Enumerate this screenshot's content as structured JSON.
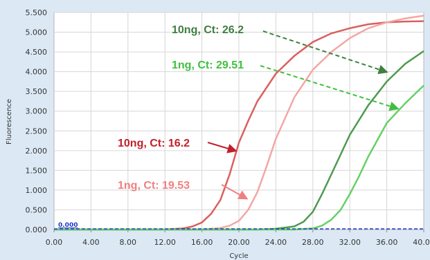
{
  "chart_data": {
    "type": "line",
    "xlabel": "Cycle",
    "ylabel": "Fluorescence",
    "xlim": [
      0,
      40
    ],
    "ylim": [
      0,
      5.5
    ],
    "x_ticks": [
      "0.00",
      "4.00",
      "8.00",
      "12.00",
      "16.00",
      "20.00",
      "24.00",
      "28.00",
      "32.00",
      "36.00",
      "40.00"
    ],
    "y_ticks": [
      "0.000",
      "0.500",
      "1.000",
      "1.500",
      "2.000",
      "2.500",
      "3.000",
      "3.500",
      "4.000",
      "4.500",
      "5.000",
      "5.500"
    ],
    "grid": true,
    "threshold": {
      "label": "0.000",
      "value": 0.0,
      "color": "#1f36c8"
    },
    "series": [
      {
        "color": "#d9605f",
        "points": [
          [
            0,
            0
          ],
          [
            12,
            0
          ],
          [
            14,
            0.03
          ],
          [
            15,
            0.08
          ],
          [
            16,
            0.18
          ],
          [
            17,
            0.4
          ],
          [
            18,
            0.75
          ],
          [
            19,
            1.4
          ],
          [
            20,
            2.2
          ],
          [
            21,
            2.75
          ],
          [
            22,
            3.25
          ],
          [
            24,
            3.95
          ],
          [
            26,
            4.4
          ],
          [
            28,
            4.75
          ],
          [
            30,
            4.97
          ],
          [
            32,
            5.1
          ],
          [
            34,
            5.2
          ],
          [
            36,
            5.25
          ],
          [
            38,
            5.27
          ],
          [
            40,
            5.28
          ]
        ]
      },
      {
        "color": "#f4a6a6",
        "points": [
          [
            0,
            0
          ],
          [
            16,
            0
          ],
          [
            18,
            0.04
          ],
          [
            19,
            0.1
          ],
          [
            20,
            0.22
          ],
          [
            21,
            0.5
          ],
          [
            22,
            0.95
          ],
          [
            23,
            1.6
          ],
          [
            24,
            2.3
          ],
          [
            26,
            3.35
          ],
          [
            28,
            4.05
          ],
          [
            30,
            4.5
          ],
          [
            32,
            4.85
          ],
          [
            34,
            5.1
          ],
          [
            36,
            5.25
          ],
          [
            38,
            5.35
          ],
          [
            40,
            5.42
          ]
        ]
      },
      {
        "color": "#4e9a50",
        "points": [
          [
            0,
            0
          ],
          [
            22,
            0
          ],
          [
            24,
            0.02
          ],
          [
            26,
            0.08
          ],
          [
            27,
            0.2
          ],
          [
            28,
            0.45
          ],
          [
            29,
            0.9
          ],
          [
            30,
            1.4
          ],
          [
            32,
            2.4
          ],
          [
            34,
            3.15
          ],
          [
            36,
            3.75
          ],
          [
            38,
            4.2
          ],
          [
            40,
            4.52
          ]
        ]
      },
      {
        "color": "#66d066",
        "points": [
          [
            0,
            0
          ],
          [
            26,
            0
          ],
          [
            28,
            0.03
          ],
          [
            29,
            0.1
          ],
          [
            30,
            0.25
          ],
          [
            31,
            0.5
          ],
          [
            32,
            0.9
          ],
          [
            33,
            1.35
          ],
          [
            34,
            1.85
          ],
          [
            36,
            2.7
          ],
          [
            38,
            3.2
          ],
          [
            40,
            3.65
          ]
        ]
      }
    ],
    "annotations": [
      {
        "text": "10ng, Ct: 26.2",
        "color": "#3f7f3f"
      },
      {
        "text": "1ng, Ct: 29.51",
        "color": "#3fbf3f"
      },
      {
        "text": "10ng, Ct: 16.2",
        "color": "#c0202a"
      },
      {
        "text": "1ng, Ct: 19.53",
        "color": "#f08080"
      }
    ]
  }
}
